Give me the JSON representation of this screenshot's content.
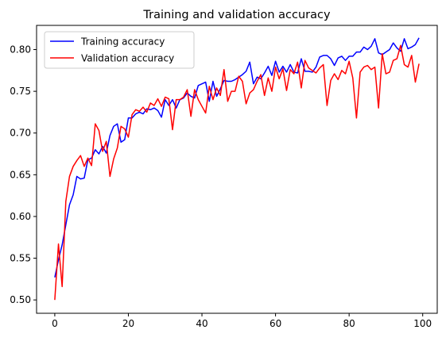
{
  "chart_data": {
    "type": "line",
    "title": "Training and validation accuracy",
    "xlabel": "",
    "ylabel": "",
    "xlim": [
      -4.95,
      103.95
    ],
    "ylim": [
      0.484,
      0.829
    ],
    "xticks": [
      0,
      20,
      40,
      60,
      80,
      100
    ],
    "yticks": [
      0.5,
      0.55,
      0.6,
      0.65,
      0.7,
      0.75,
      0.8
    ],
    "xtick_labels": [
      "0",
      "20",
      "40",
      "60",
      "80",
      "100"
    ],
    "ytick_labels": [
      "0.50",
      "0.55",
      "0.60",
      "0.65",
      "0.70",
      "0.75",
      "0.80"
    ],
    "grid": false,
    "legend_position": "top-left",
    "series": [
      {
        "name": "Training accuracy",
        "color": "#0000ff",
        "values": [
          0.527,
          0.548,
          0.566,
          0.59,
          0.614,
          0.626,
          0.648,
          0.645,
          0.646,
          0.668,
          0.67,
          0.68,
          0.675,
          0.684,
          0.676,
          0.697,
          0.708,
          0.711,
          0.689,
          0.692,
          0.718,
          0.718,
          0.723,
          0.725,
          0.723,
          0.729,
          0.728,
          0.73,
          0.727,
          0.719,
          0.74,
          0.733,
          0.74,
          0.73,
          0.74,
          0.742,
          0.748,
          0.744,
          0.742,
          0.757,
          0.759,
          0.761,
          0.738,
          0.762,
          0.744,
          0.753,
          0.763,
          0.762,
          0.762,
          0.764,
          0.767,
          0.77,
          0.774,
          0.785,
          0.759,
          0.767,
          0.765,
          0.772,
          0.78,
          0.769,
          0.786,
          0.773,
          0.78,
          0.773,
          0.782,
          0.773,
          0.772,
          0.789,
          0.774,
          0.774,
          0.773,
          0.779,
          0.791,
          0.793,
          0.793,
          0.789,
          0.781,
          0.79,
          0.792,
          0.787,
          0.792,
          0.792,
          0.797,
          0.797,
          0.803,
          0.8,
          0.804,
          0.813,
          0.796,
          0.794,
          0.797,
          0.8,
          0.808,
          0.802,
          0.798,
          0.813,
          0.801,
          0.803,
          0.806,
          0.814
        ]
      },
      {
        "name": "Validation accuracy",
        "color": "#ff0000",
        "values": [
          0.5,
          0.567,
          0.516,
          0.618,
          0.648,
          0.66,
          0.667,
          0.673,
          0.66,
          0.67,
          0.661,
          0.711,
          0.703,
          0.678,
          0.69,
          0.648,
          0.669,
          0.682,
          0.708,
          0.705,
          0.695,
          0.722,
          0.728,
          0.726,
          0.731,
          0.725,
          0.736,
          0.733,
          0.741,
          0.732,
          0.743,
          0.741,
          0.704,
          0.74,
          0.74,
          0.743,
          0.752,
          0.72,
          0.752,
          0.74,
          0.732,
          0.724,
          0.756,
          0.74,
          0.754,
          0.745,
          0.776,
          0.738,
          0.75,
          0.75,
          0.768,
          0.762,
          0.735,
          0.748,
          0.752,
          0.762,
          0.77,
          0.745,
          0.766,
          0.75,
          0.779,
          0.765,
          0.777,
          0.751,
          0.776,
          0.771,
          0.785,
          0.754,
          0.787,
          0.778,
          0.775,
          0.772,
          0.778,
          0.782,
          0.733,
          0.763,
          0.771,
          0.764,
          0.775,
          0.771,
          0.786,
          0.766,
          0.718,
          0.773,
          0.779,
          0.781,
          0.776,
          0.779,
          0.73,
          0.795,
          0.771,
          0.773,
          0.787,
          0.789,
          0.805,
          0.782,
          0.779,
          0.793,
          0.761,
          0.783
        ]
      }
    ]
  }
}
